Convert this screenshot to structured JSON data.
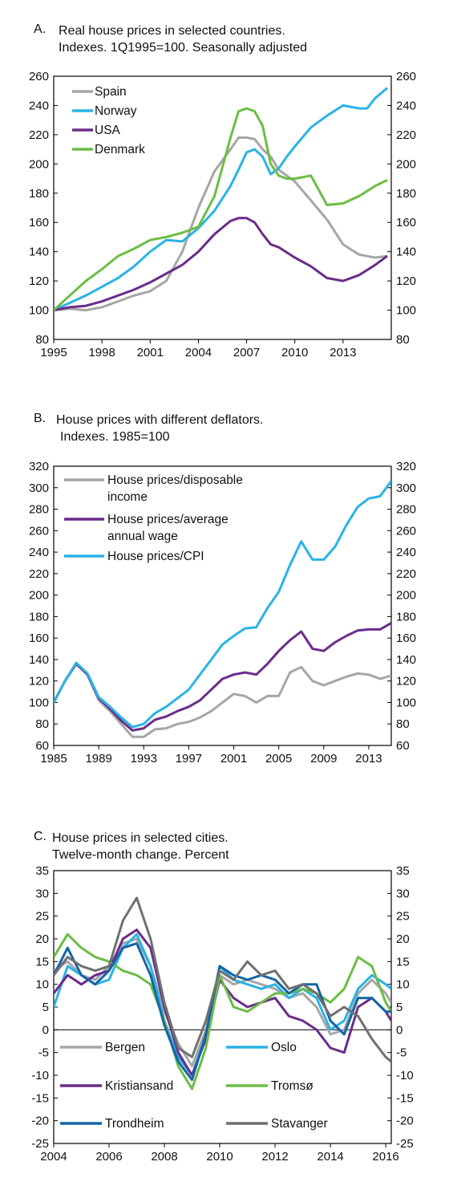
{
  "chart_data": [
    {
      "panel_label": "A.",
      "title_lines": [
        "Real house prices in selected countries.",
        "Indexes. 1Q1995=100. Seasonally adjusted"
      ],
      "type": "line",
      "xlim": [
        1995,
        2016
      ],
      "ylim": [
        80,
        260
      ],
      "x_ticks": [
        "1995",
        "1998",
        "2001",
        "2004",
        "2007",
        "2010",
        "2013"
      ],
      "y_ticks": [
        "80",
        "100",
        "120",
        "140",
        "160",
        "180",
        "200",
        "220",
        "240",
        "260"
      ],
      "legend_position": "top-left",
      "grid": false,
      "series": [
        {
          "name": "Spain",
          "color": "#a6a6a6",
          "x": [
            1995,
            1996,
            1997,
            1998,
            1999,
            2000,
            2001,
            2002,
            2003,
            2004,
            2005,
            2006,
            2006.5,
            2007,
            2007.5,
            2008,
            2008.5,
            2009,
            2009.5,
            2010,
            2011,
            2012,
            2013,
            2014,
            2015,
            2015.75
          ],
          "y": [
            100,
            101,
            100,
            102,
            106,
            110,
            113,
            120,
            140,
            170,
            195,
            210,
            218,
            218,
            217,
            210,
            205,
            196,
            192,
            188,
            175,
            162,
            145,
            138,
            136,
            137
          ]
        },
        {
          "name": "Norway",
          "color": "#2ab3e6",
          "x": [
            1995,
            1996,
            1997,
            1998,
            1999,
            2000,
            2001,
            2002,
            2003,
            2004,
            2005,
            2006,
            2006.5,
            2007,
            2007.5,
            2008,
            2008.5,
            2009,
            2009.5,
            2010,
            2011,
            2012,
            2013,
            2014,
            2014.5,
            2015,
            2015.75
          ],
          "y": [
            100,
            105,
            110,
            116,
            122,
            130,
            140,
            148,
            147,
            156,
            168,
            185,
            196,
            208,
            210,
            205,
            193,
            197,
            205,
            212,
            225,
            233,
            240,
            238,
            238,
            245,
            252
          ]
        },
        {
          "name": "USA",
          "color": "#6b2c8a",
          "x": [
            1995,
            1996,
            1997,
            1998,
            1999,
            2000,
            2001,
            2002,
            2003,
            2004,
            2005,
            2006,
            2006.5,
            2007,
            2007.5,
            2008,
            2008.5,
            2009,
            2010,
            2011,
            2012,
            2013,
            2014,
            2015,
            2015.75
          ],
          "y": [
            100,
            102,
            103,
            106,
            110,
            114,
            119,
            125,
            131,
            140,
            152,
            161,
            163,
            163,
            160,
            152,
            145,
            143,
            136,
            130,
            122,
            120,
            124,
            131,
            137
          ]
        },
        {
          "name": "Denmark",
          "color": "#6cbd45",
          "x": [
            1995,
            1996,
            1997,
            1998,
            1999,
            2000,
            2001,
            2002,
            2003,
            2004,
            2005,
            2006,
            2006.5,
            2007,
            2007.5,
            2008,
            2008.5,
            2009,
            2009.5,
            2010,
            2011,
            2012,
            2013,
            2014,
            2015,
            2015.75
          ],
          "y": [
            100,
            110,
            120,
            128,
            137,
            142,
            148,
            150,
            153,
            157,
            178,
            218,
            236,
            238,
            236,
            226,
            200,
            192,
            190,
            190,
            192,
            172,
            173,
            178,
            185,
            189
          ]
        }
      ]
    },
    {
      "panel_label": "B.",
      "title_lines": [
        "House prices with different deflators.",
        "Indexes. 1985=100"
      ],
      "type": "line",
      "xlim": [
        1985,
        2015
      ],
      "ylim": [
        60,
        320
      ],
      "x_ticks": [
        "1985",
        "1989",
        "1993",
        "1997",
        "2001",
        "2005",
        "2009",
        "2013"
      ],
      "y_ticks": [
        "60",
        "80",
        "100",
        "120",
        "140",
        "160",
        "180",
        "200",
        "220",
        "240",
        "260",
        "280",
        "300",
        "320"
      ],
      "legend_position": "top-left",
      "grid": false,
      "series": [
        {
          "name_lines": [
            "House prices/disposable",
            "income"
          ],
          "color": "#a6a6a6",
          "x": [
            1985,
            1986,
            1987,
            1988,
            1989,
            1990,
            1991,
            1992,
            1993,
            1994,
            1995,
            1996,
            1997,
            1998,
            1999,
            2000,
            2001,
            2002,
            2003,
            2004,
            2005,
            2006,
            2007,
            2008,
            2009,
            2010,
            2011,
            2012,
            2013,
            2014,
            2015
          ],
          "y": [
            100,
            120,
            136,
            126,
            102,
            92,
            80,
            68,
            68,
            75,
            76,
            80,
            82,
            86,
            92,
            100,
            108,
            106,
            100,
            106,
            106,
            128,
            133,
            120,
            116,
            120,
            124,
            127,
            126,
            122,
            125
          ]
        },
        {
          "name_lines": [
            "House prices/average",
            "annual wage"
          ],
          "color": "#6b2c8a",
          "x": [
            1985,
            1986,
            1987,
            1988,
            1989,
            1990,
            1991,
            1992,
            1993,
            1994,
            1995,
            1996,
            1997,
            1998,
            1999,
            2000,
            2001,
            2002,
            2003,
            2004,
            2005,
            2006,
            2007,
            2008,
            2009,
            2010,
            2011,
            2012,
            2013,
            2014,
            2015
          ],
          "y": [
            100,
            120,
            136,
            126,
            104,
            94,
            83,
            74,
            76,
            84,
            87,
            92,
            96,
            102,
            112,
            122,
            126,
            128,
            126,
            136,
            148,
            158,
            166,
            150,
            148,
            156,
            162,
            167,
            168,
            168,
            174
          ]
        },
        {
          "name_lines": [
            "House prices/CPI"
          ],
          "color": "#2ab3e6",
          "x": [
            1985,
            1986,
            1987,
            1988,
            1989,
            1990,
            1991,
            1992,
            1993,
            1994,
            1995,
            1996,
            1997,
            1998,
            1999,
            2000,
            2001,
            2002,
            2003,
            2004,
            2005,
            2006,
            2007,
            2008,
            2009,
            2010,
            2011,
            2012,
            2013,
            2014,
            2015
          ],
          "y": [
            100,
            120,
            137,
            127,
            105,
            96,
            86,
            77,
            80,
            90,
            96,
            104,
            112,
            126,
            140,
            154,
            162,
            169,
            170,
            188,
            203,
            228,
            250,
            233,
            233,
            245,
            265,
            282,
            290,
            292,
            306
          ]
        }
      ]
    },
    {
      "panel_label": "C.",
      "title_lines": [
        "House prices in selected cities.",
        "Twelve-month change. Percent"
      ],
      "type": "line",
      "xlim": [
        2004,
        2016.2
      ],
      "ylim": [
        -25,
        35
      ],
      "x_ticks": [
        "2004",
        "2006",
        "2008",
        "2010",
        "2012",
        "2014",
        "2016"
      ],
      "y_ticks": [
        "-25",
        "-20",
        "-15",
        "-10",
        "-5",
        "0",
        "5",
        "10",
        "15",
        "20",
        "25",
        "30",
        "35"
      ],
      "legend_position": "bottom",
      "grid": false,
      "series": [
        {
          "name": "Bergen",
          "color": "#a6a6a6",
          "x": [
            2004,
            2004.5,
            2005,
            2005.5,
            2006,
            2006.5,
            2007,
            2007.5,
            2008,
            2008.5,
            2009,
            2009.5,
            2010,
            2010.5,
            2011,
            2011.5,
            2012,
            2012.5,
            2013,
            2013.5,
            2014,
            2014.5,
            2015,
            2015.5,
            2016,
            2016.2
          ],
          "y": [
            13,
            15,
            12,
            11,
            14,
            19,
            20,
            14,
            4,
            -3,
            -8,
            0,
            12,
            10,
            11,
            10,
            9,
            7,
            8,
            5,
            -1,
            0,
            8,
            11,
            8,
            6
          ]
        },
        {
          "name": "Oslo",
          "color": "#2ab3e6",
          "x": [
            2004,
            2004.5,
            2005,
            2005.5,
            2006,
            2006.5,
            2007,
            2007.5,
            2008,
            2008.5,
            2009,
            2009.5,
            2010,
            2010.5,
            2011,
            2011.5,
            2012,
            2012.5,
            2013,
            2013.5,
            2014,
            2014.5,
            2015,
            2015.5,
            2016,
            2016.2
          ],
          "y": [
            5,
            14,
            12,
            10,
            11,
            18,
            21,
            14,
            2,
            -6,
            -10,
            -1,
            14,
            11,
            10,
            9,
            10,
            7,
            9,
            7,
            0,
            2,
            9,
            12,
            10,
            9
          ]
        },
        {
          "name": "Kristiansand",
          "color": "#6b2c8a",
          "x": [
            2004,
            2004.5,
            2005,
            2005.5,
            2006,
            2006.5,
            2007,
            2007.5,
            2008,
            2008.5,
            2009,
            2009.5,
            2010,
            2010.5,
            2011,
            2011.5,
            2012,
            2012.5,
            2013,
            2013.5,
            2014,
            2014.5,
            2015,
            2015.5,
            2016,
            2016.2
          ],
          "y": [
            8,
            12,
            10,
            12,
            13,
            20,
            22,
            18,
            5,
            -5,
            -10,
            -2,
            11,
            7,
            5,
            6,
            7,
            3,
            2,
            0,
            -4,
            -5,
            5,
            7,
            4,
            2
          ]
        },
        {
          "name": "Tromsø",
          "color": "#6cbd45",
          "x": [
            2004,
            2004.5,
            2005,
            2005.5,
            2006,
            2006.5,
            2007,
            2007.5,
            2008,
            2008.5,
            2009,
            2009.5,
            2010,
            2010.5,
            2011,
            2011.5,
            2012,
            2012.5,
            2013,
            2013.5,
            2014,
            2014.5,
            2015,
            2015.5,
            2016,
            2016.2
          ],
          "y": [
            16,
            21,
            18,
            16,
            15,
            13,
            12,
            10,
            2,
            -8,
            -13,
            -4,
            12,
            5,
            4,
            6,
            8,
            8,
            9,
            8,
            6,
            9,
            16,
            14,
            6,
            4
          ]
        },
        {
          "name": "Trondheim",
          "color": "#1565a6",
          "x": [
            2004,
            2004.5,
            2005,
            2005.5,
            2006,
            2006.5,
            2007,
            2007.5,
            2008,
            2008.5,
            2009,
            2009.5,
            2010,
            2010.5,
            2011,
            2011.5,
            2012,
            2012.5,
            2013,
            2013.5,
            2014,
            2014.5,
            2015,
            2015.5,
            2016,
            2016.2
          ],
          "y": [
            12,
            18,
            12,
            10,
            13,
            18,
            19,
            12,
            1,
            -7,
            -11,
            -1,
            14,
            12,
            11,
            12,
            11,
            8,
            10,
            10,
            2,
            -1,
            7,
            7,
            4,
            4
          ]
        },
        {
          "name": "Stavanger",
          "color": "#707070",
          "x": [
            2004,
            2004.5,
            2005,
            2005.5,
            2006,
            2006.5,
            2007,
            2007.5,
            2008,
            2008.5,
            2009,
            2009.5,
            2010,
            2010.5,
            2011,
            2011.5,
            2012,
            2012.5,
            2013,
            2013.5,
            2014,
            2014.5,
            2015,
            2015.5,
            2016,
            2016.2
          ],
          "y": [
            12,
            16,
            14,
            13,
            14,
            24,
            29,
            20,
            6,
            -4,
            -6,
            2,
            13,
            11,
            15,
            12,
            13,
            9,
            10,
            8,
            3,
            5,
            3,
            -2,
            -6,
            -7
          ]
        }
      ]
    }
  ]
}
